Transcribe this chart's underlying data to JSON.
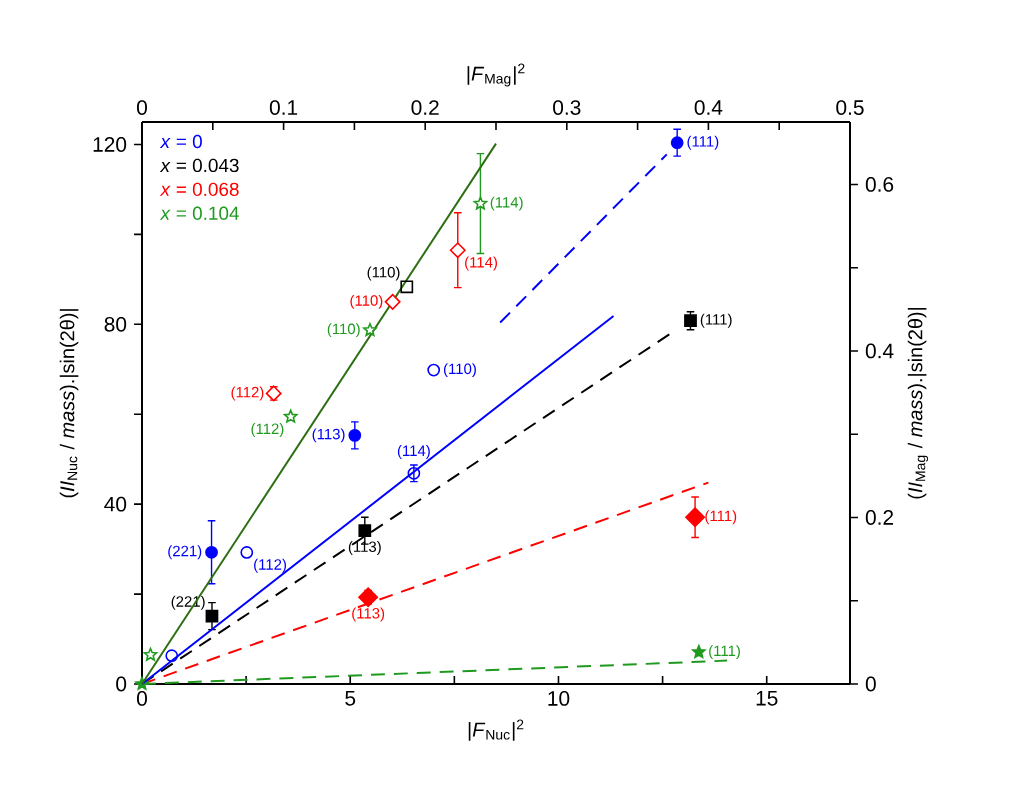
{
  "chart_data": [
    {
      "type": "scatter",
      "xlabel": "|*F*$_{Nuc}$|$^{2}$",
      "ylabel": "(*II*$_{Nuc}$ / *mass*).|sin(2θ)|",
      "xlim": [
        0,
        17
      ],
      "xticks": [
        0,
        {
          "value": 2.5,
          "label": null
        },
        5,
        {
          "value": 7.5,
          "label": null
        },
        10,
        {
          "value": 12.5,
          "label": null
        },
        15
      ],
      "ylim": [
        0,
        125
      ],
      "yticks": [
        0,
        {
          "value": 20,
          "label": null
        },
        40,
        {
          "value": 60,
          "label": null
        },
        80,
        {
          "value": 100,
          "label": null
        },
        120
      ],
      "legend": "top left",
      "series": [
        {
          "name": "*x* = 0",
          "marker": "circle",
          "color": "#0000ff",
          "x": [
            1.67,
            5.11,
            12.85
          ],
          "values": [
            29.3,
            55.3,
            120.4
          ],
          "errors": [
            7,
            3,
            3
          ]
        },
        {
          "name": "*x* = 0.043",
          "marker": "square",
          "color": "#000000",
          "x": [
            1.68,
            5.35,
            13.17
          ],
          "values": [
            15.1,
            34.1,
            80.8
          ],
          "errors": [
            3,
            3,
            2
          ]
        },
        {
          "name": "*x* = 0.068",
          "marker": "diamond",
          "color": "#ff0000",
          "x": [
            5.43,
            13.28
          ],
          "values": [
            19.3,
            37.1
          ],
          "errors": [
            1.5,
            4.5
          ]
        },
        {
          "name": "*x* = 0.104",
          "marker": "star",
          "color": "#1f9a1f",
          "x": [
            0,
            13.37
          ],
          "values": [
            0,
            7.1
          ]
        },
        {
          "type": "line",
          "line_style": "dashed",
          "color": "#0000ff",
          "x": [
            8.6,
            12.6
          ],
          "values": [
            80.4,
            117.8
          ]
        },
        {
          "type": "line",
          "line_style": "dashed",
          "color": "#000000",
          "x": [
            0,
            12.7
          ],
          "values": [
            0,
            78
          ]
        },
        {
          "type": "line",
          "line_style": "dashed",
          "color": "#ff0000",
          "x": [
            0,
            13.6
          ],
          "values": [
            0,
            44.8
          ]
        },
        {
          "type": "line",
          "line_style": "dashed",
          "color": "#1f9a1f",
          "x": [
            0,
            14.05
          ],
          "values": [
            0,
            5.2
          ]
        }
      ],
      "annotations": [
        {
          "text": "(221)",
          "x": 1.67,
          "y": 29.3
        },
        {
          "text": "(113)",
          "x": 5.11,
          "y": 55.3
        },
        {
          "text": "(111)",
          "x": 12.85,
          "y": 120.4
        },
        {
          "text": "(221)",
          "x": 1.68,
          "y": 15.1
        },
        {
          "text": "(113)",
          "x": 5.35,
          "y": 34.1
        },
        {
          "text": "(111)",
          "x": 13.17,
          "y": 80.8
        },
        {
          "text": "(113)",
          "x": 5.43,
          "y": 19.3
        },
        {
          "text": "(111)",
          "x": 13.28,
          "y": 37.1
        },
        {
          "text": "(111)",
          "x": 13.37,
          "y": 7.1
        }
      ]
    },
    {
      "type": "scatter",
      "xlabel": "|*F*$_{Mag}$|$^{2}$",
      "ylabel": "(*II*$_{Mag}$ / *mass*).|sin(2θ)|",
      "xlim": [
        0,
        0.5
      ],
      "xticks": [
        0,
        {
          "value": 0.05,
          "label": null
        },
        0.1,
        {
          "value": 0.15,
          "label": null
        },
        0.2,
        {
          "value": 0.25,
          "label": null
        },
        0.3,
        {
          "value": 0.35,
          "label": null
        },
        0.4,
        {
          "value": 0.45,
          "label": null
        },
        0.5
      ],
      "ylim": [
        0,
        0.675
      ],
      "yticks": [
        0,
        {
          "value": 0.1,
          "label": null
        },
        0.2,
        {
          "value": 0.3,
          "label": null
        },
        0.4,
        {
          "value": 0.5,
          "label": null
        },
        0.6
      ],
      "series": [
        {
          "marker": "circle",
          "color": "#0000ff",
          "x": [
            0.021,
            0.074,
            0.192,
            0.206
          ],
          "values": [
            0.034,
            0.158,
            0.253,
            0.377
          ],
          "errors": [
            null,
            null,
            0.01,
            null
          ]
        },
        {
          "marker": "square",
          "color": "#000000",
          "x": [
            0.187
          ],
          "values": [
            0.477
          ]
        },
        {
          "marker": "diamond",
          "color": "#ff0000",
          "x": [
            0.093,
            0.177,
            0.223
          ],
          "values": [
            0.349,
            0.459,
            0.521
          ],
          "errors": [
            0.008,
            null,
            0.045
          ]
        },
        {
          "marker": "star",
          "color": "#1f9a1f",
          "x": [
            0.006,
            0.105,
            0.161,
            0.239
          ],
          "values": [
            0.035,
            0.321,
            0.425,
            0.577
          ],
          "errors": [
            null,
            null,
            null,
            0.06
          ]
        },
        {
          "type": "line",
          "line_style": "solid",
          "color": "#0000ff",
          "x": [
            0,
            0.333
          ],
          "values": [
            0,
            0.442
          ]
        },
        {
          "type": "line",
          "line_style": "solid",
          "color": "#2d6e12",
          "x": [
            0,
            0.25
          ],
          "values": [
            0,
            0.649
          ]
        }
      ],
      "annotations": [
        {
          "text": "(112)",
          "x": 0.074,
          "y": 0.158
        },
        {
          "text": "(114)",
          "x": 0.192,
          "y": 0.253
        },
        {
          "text": "(110)",
          "x": 0.206,
          "y": 0.377
        },
        {
          "text": "(110)",
          "x": 0.187,
          "y": 0.477
        },
        {
          "text": "(112)",
          "x": 0.093,
          "y": 0.349
        },
        {
          "text": "(110)",
          "x": 0.177,
          "y": 0.459
        },
        {
          "text": "(114)",
          "x": 0.223,
          "y": 0.521
        },
        {
          "text": "(112)",
          "x": 0.105,
          "y": 0.321
        },
        {
          "text": "(110)",
          "x": 0.161,
          "y": 0.425
        },
        {
          "text": "(114)",
          "x": 0.239,
          "y": 0.577
        }
      ]
    }
  ]
}
